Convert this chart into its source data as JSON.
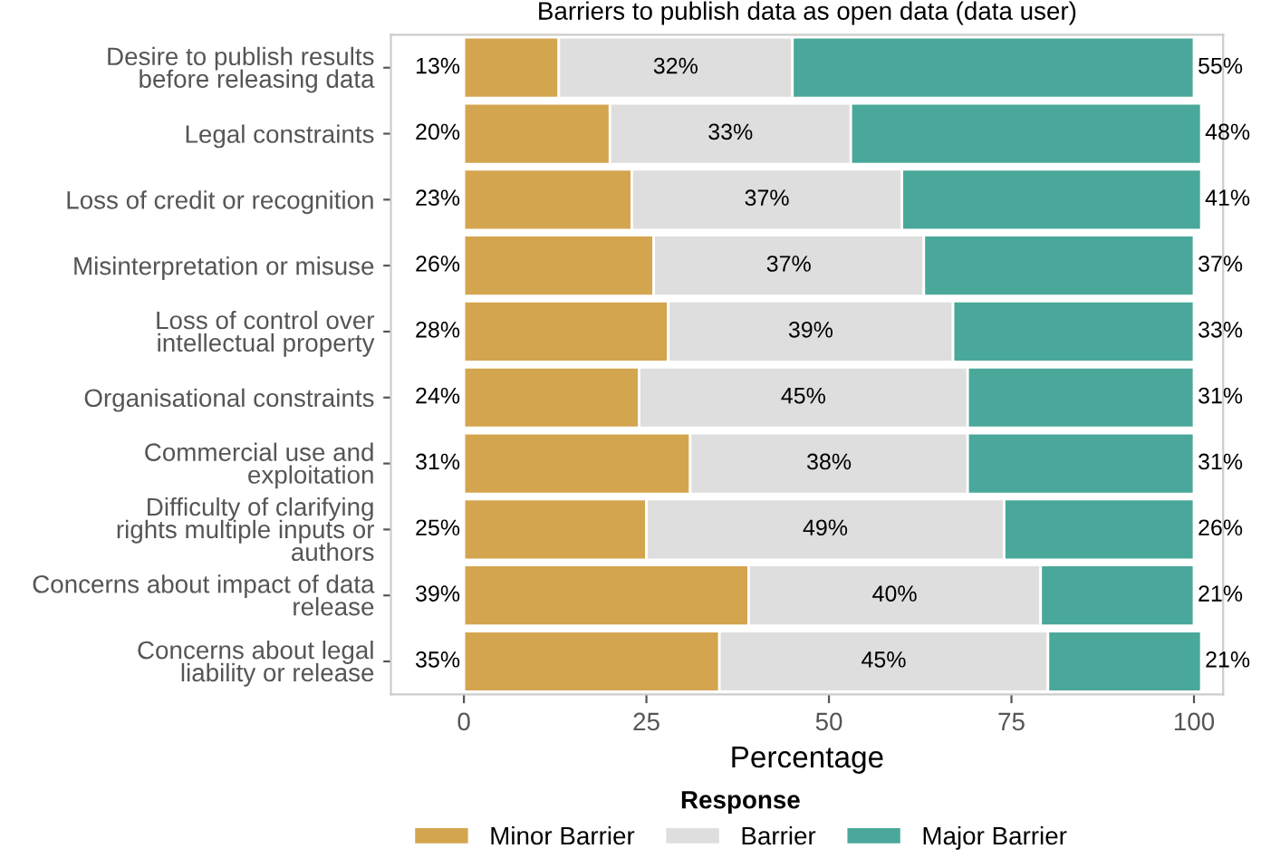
{
  "chart_data": {
    "type": "bar",
    "orientation": "horizontal",
    "stacked": true,
    "title": "Barriers to publish data as open data (data user)",
    "xlabel": "Percentage",
    "legend_title": "Response",
    "legend": "bottom",
    "grid": false,
    "categories": [
      "Desire to publish results\nbefore releasing data",
      "Legal constraints",
      "Loss of credit or recognition",
      "Misinterpretation or misuse",
      "Loss of control over\nintellectual property",
      "Organisational constraints",
      "Commercial use and\nexploitation",
      "Difficulty of clarifying\nrights multiple inputs or\nauthors",
      "Concerns about impact of data\nrelease",
      "Concerns about legal\nliability or release"
    ],
    "xlim": [
      -10,
      104
    ],
    "xticks": [
      0,
      25,
      50,
      75,
      100
    ],
    "series": [
      {
        "name": "Minor Barrier",
        "color": "#d4a54f",
        "values": [
          13,
          20,
          23,
          26,
          28,
          24,
          31,
          25,
          39,
          35
        ],
        "value_labels": [
          "13%",
          "20%",
          "23%",
          "26%",
          "28%",
          "24%",
          "31%",
          "25%",
          "39%",
          "35%"
        ]
      },
      {
        "name": "Barrier",
        "color": "#dedede",
        "values": [
          32,
          33,
          37,
          37,
          39,
          45,
          38,
          49,
          40,
          45
        ],
        "value_labels": [
          "32%",
          "33%",
          "37%",
          "37%",
          "39%",
          "45%",
          "38%",
          "49%",
          "40%",
          "45%"
        ]
      },
      {
        "name": "Major Barrier",
        "color": "#4aa89a",
        "values": [
          55,
          48,
          41,
          37,
          33,
          31,
          31,
          26,
          21,
          21
        ],
        "value_labels": [
          "55%",
          "48%",
          "41%",
          "37%",
          "33%",
          "31%",
          "31%",
          "26%",
          "21%",
          "21%"
        ]
      }
    ]
  }
}
